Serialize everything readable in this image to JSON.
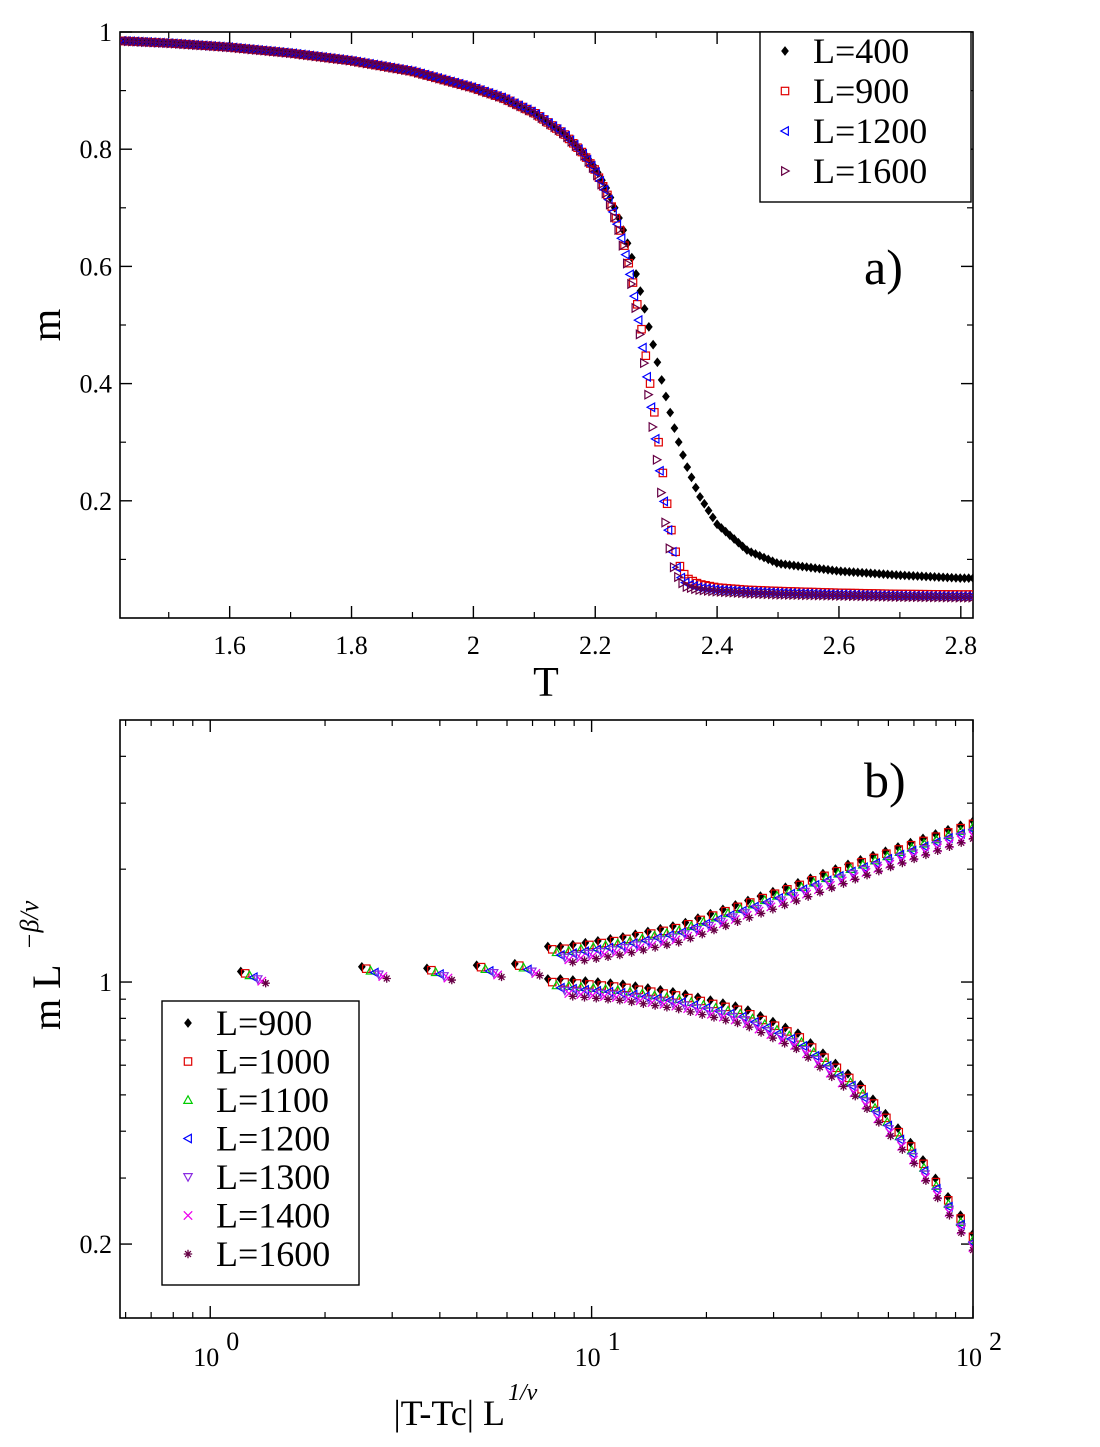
{
  "chart_data": [
    {
      "type": "scatter",
      "panel_label": "a)",
      "xlabel": "T",
      "ylabel": "m",
      "xlim": [
        1.42,
        2.82
      ],
      "ylim": [
        0.0,
        1.0
      ],
      "xticks": [
        1.6,
        1.8,
        2.0,
        2.2,
        2.4,
        2.6,
        2.8
      ],
      "xtick_labels": [
        "1.6",
        "1.8",
        "2",
        "2.2",
        "2.4",
        "2.6",
        "2.8"
      ],
      "yticks": [
        0.2,
        0.4,
        0.6,
        0.8,
        1.0
      ],
      "ytick_labels": [
        "0.2",
        "0.4",
        "0.6",
        "0.8",
        "1"
      ],
      "legend_position": "top-right",
      "x": [
        1.42,
        1.5,
        1.6,
        1.7,
        1.8,
        1.9,
        2.0,
        2.05,
        2.1,
        2.15,
        2.18,
        2.2,
        2.22,
        2.24,
        2.25,
        2.26,
        2.27,
        2.28,
        2.29,
        2.3,
        2.31,
        2.32,
        2.33,
        2.34,
        2.35,
        2.37,
        2.4,
        2.45,
        2.5,
        2.6,
        2.7,
        2.8
      ],
      "series": [
        {
          "name": "L=400",
          "color": "#000000",
          "marker": "diamond",
          "values": [
            0.985,
            0.981,
            0.974,
            0.964,
            0.951,
            0.933,
            0.905,
            0.887,
            0.862,
            0.826,
            0.795,
            0.768,
            0.73,
            0.68,
            0.65,
            0.615,
            0.575,
            0.532,
            0.488,
            0.445,
            0.402,
            0.362,
            0.324,
            0.29,
            0.26,
            0.21,
            0.16,
            0.115,
            0.093,
            0.08,
            0.073,
            0.068
          ]
        },
        {
          "name": "L=900",
          "color": "#e00000",
          "marker": "square",
          "values": [
            0.985,
            0.981,
            0.974,
            0.964,
            0.951,
            0.933,
            0.905,
            0.887,
            0.862,
            0.825,
            0.793,
            0.764,
            0.722,
            0.665,
            0.628,
            0.583,
            0.53,
            0.468,
            0.4,
            0.33,
            0.255,
            0.18,
            0.12,
            0.085,
            0.068,
            0.058,
            0.052,
            0.048,
            0.046,
            0.043,
            0.041,
            0.04
          ]
        },
        {
          "name": "L=1200",
          "color": "#0000ff",
          "marker": "triangle-left",
          "values": [
            0.985,
            0.981,
            0.974,
            0.964,
            0.951,
            0.933,
            0.905,
            0.887,
            0.862,
            0.825,
            0.792,
            0.763,
            0.72,
            0.66,
            0.62,
            0.572,
            0.515,
            0.448,
            0.375,
            0.298,
            0.22,
            0.15,
            0.097,
            0.07,
            0.058,
            0.052,
            0.048,
            0.045,
            0.043,
            0.04,
            0.038,
            0.037
          ]
        },
        {
          "name": "L=1600",
          "color": "#660044",
          "marker": "triangle-right",
          "values": [
            0.985,
            0.981,
            0.974,
            0.964,
            0.951,
            0.933,
            0.905,
            0.887,
            0.862,
            0.825,
            0.792,
            0.762,
            0.718,
            0.656,
            0.615,
            0.565,
            0.505,
            0.435,
            0.358,
            0.278,
            0.198,
            0.128,
            0.082,
            0.062,
            0.053,
            0.048,
            0.045,
            0.042,
            0.04,
            0.038,
            0.036,
            0.035
          ]
        }
      ]
    },
    {
      "type": "scatter",
      "panel_label": "b)",
      "xlabel": "|T-Tc| L",
      "xlabel_exponent": "1/ν",
      "ylabel": "m L",
      "ylabel_exponent": "−β/ν",
      "xscale": "log",
      "yscale": "log",
      "xlim": [
        0.58,
        100
      ],
      "ylim": [
        0.127,
        5.0
      ],
      "xticks": [
        1,
        10,
        100
      ],
      "xtick_labels": [
        {
          "base": "10",
          "exp": "0"
        },
        {
          "base": "10",
          "exp": "1"
        },
        {
          "base": "10",
          "exp": "2"
        }
      ],
      "yticks": [
        0.2,
        1
      ],
      "ytick_labels": [
        "0.2",
        "1"
      ],
      "legend_position": "bottom-left",
      "series": [
        {
          "name": "L=900",
          "color": "#000000",
          "marker": "diamond",
          "scale": 1.04
        },
        {
          "name": "L=1000",
          "color": "#e00000",
          "marker": "square",
          "scale": 1.02
        },
        {
          "name": "L=1100",
          "color": "#00cc00",
          "marker": "triangle-up",
          "scale": 1.0
        },
        {
          "name": "L=1200",
          "color": "#0000ff",
          "marker": "triangle-left",
          "scale": 0.985
        },
        {
          "name": "L=1300",
          "color": "#8a2be2",
          "marker": "triangle-down",
          "scale": 0.97
        },
        {
          "name": "L=1400",
          "color": "#ee00ee",
          "marker": "x",
          "scale": 0.955
        },
        {
          "name": "L=1600",
          "color": "#660044",
          "marker": "star",
          "scale": 0.94
        }
      ],
      "x_small": [
        1.3,
        2.7,
        4.0,
        5.4,
        6.8
      ],
      "upper_branch": {
        "x": [
          8.3,
          12,
          17,
          25,
          35,
          50,
          70,
          100
        ],
        "y": [
          1.18,
          1.25,
          1.35,
          1.55,
          1.75,
          2.0,
          2.25,
          2.55
        ]
      },
      "lower_branch": {
        "x": [
          8.3,
          12,
          17,
          25,
          35,
          50,
          70,
          100
        ],
        "y": [
          0.98,
          0.95,
          0.9,
          0.82,
          0.7,
          0.52,
          0.35,
          0.205
        ]
      }
    }
  ]
}
